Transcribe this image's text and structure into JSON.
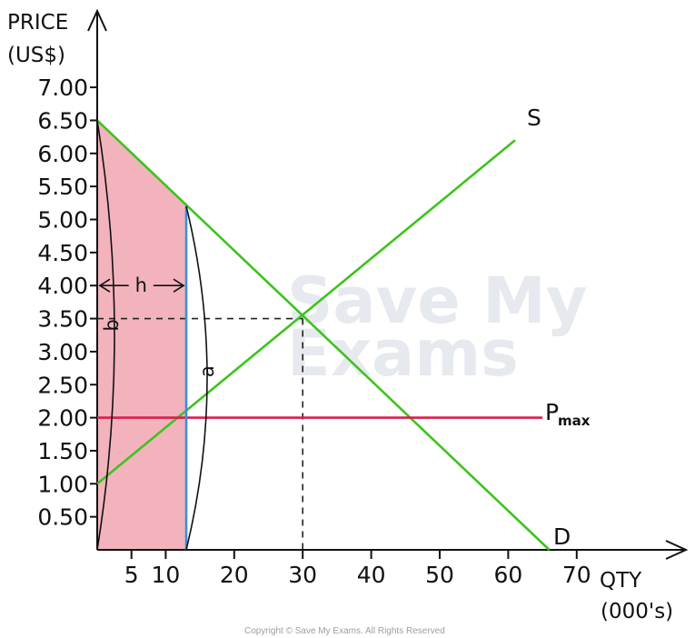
{
  "chart_data": {
    "type": "line",
    "y_axis": {
      "title_line1": "PRICE",
      "title_line2": "(US$)",
      "range": [
        0,
        7.0
      ],
      "ticks": [
        "0.50",
        "1.00",
        "1.50",
        "2.00",
        "2.50",
        "3.00",
        "3.50",
        "4.00",
        "4.50",
        "5.00",
        "5.50",
        "6.00",
        "6.50",
        "7.00"
      ]
    },
    "x_axis": {
      "title_line1": "QTY",
      "title_line2": "(000's)",
      "range": [
        0,
        70
      ],
      "ticks": [
        "5",
        "10",
        "20",
        "30",
        "40",
        "50",
        "60",
        "70"
      ]
    },
    "series": [
      {
        "name": "S",
        "points": [
          [
            0,
            1.0
          ],
          [
            61,
            6.2
          ]
        ],
        "color": "#3cc41c"
      },
      {
        "name": "D",
        "points": [
          [
            0,
            6.5
          ],
          [
            66,
            0
          ]
        ],
        "color": "#3cc41c"
      },
      {
        "name": "Pmax",
        "points": [
          [
            0,
            2.0
          ],
          [
            65,
            2.0
          ]
        ],
        "color": "#d81e4c"
      }
    ],
    "equilibrium": {
      "x": 30,
      "y": 3.5
    },
    "price_ceiling": 2.0,
    "quantity_supplied_at_ceiling": 13,
    "price_at_ceiling_qty": 5.2,
    "labels": {
      "supply": "S",
      "demand": "D",
      "pmax_main": "P",
      "pmax_sub": "max",
      "height": "h",
      "base_left": "b",
      "base_right": "a"
    },
    "shaded_color": "#f2b3bd",
    "ceiling_qty_line_color": "#3a8fe0"
  },
  "watermark": {
    "line1": "Save My",
    "line2": "Exams"
  },
  "copyright": "Copyright © Save My Exams. All Rights Reserved"
}
